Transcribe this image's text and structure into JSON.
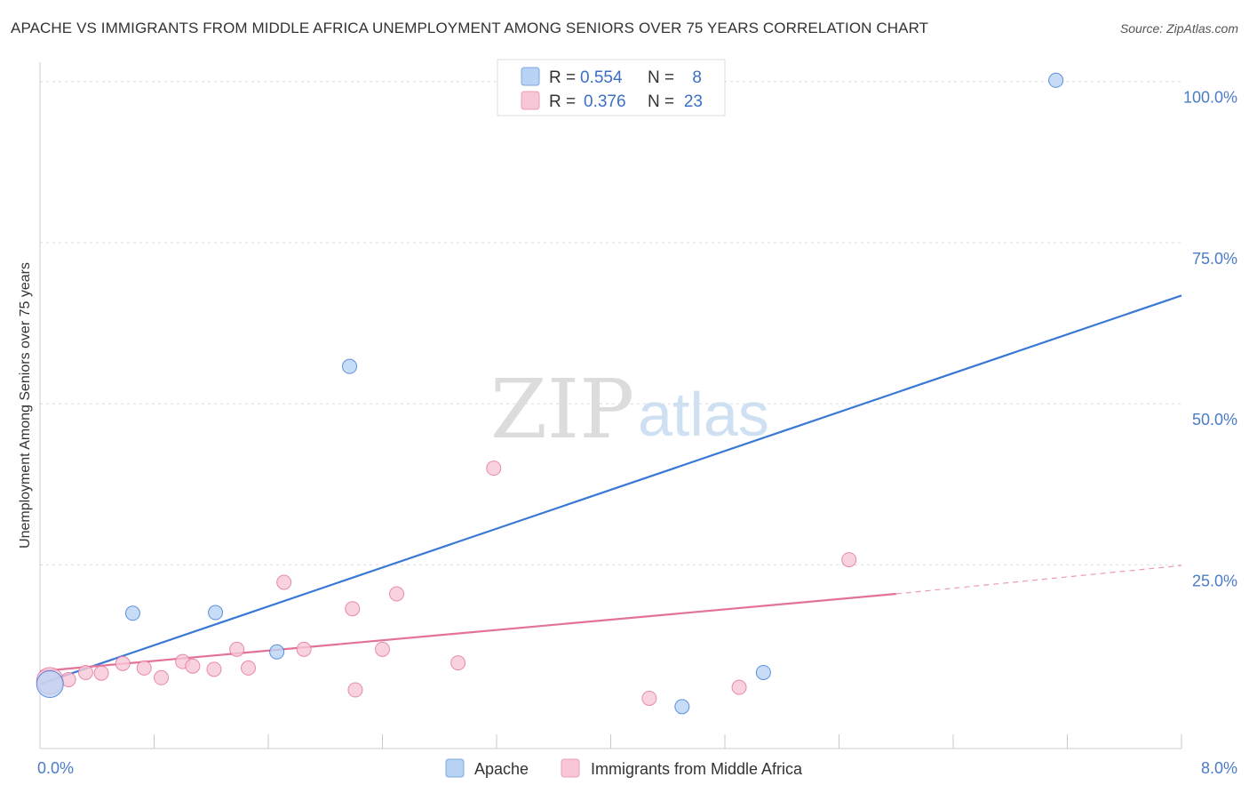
{
  "header": {
    "title": "APACHE VS IMMIGRANTS FROM MIDDLE AFRICA UNEMPLOYMENT AMONG SENIORS OVER 75 YEARS CORRELATION CHART",
    "source": "Source: ZipAtlas.com"
  },
  "watermark": {
    "zip": "ZIP",
    "atlas": "atlas"
  },
  "chart_data": {
    "type": "scatter",
    "title": "APACHE VS IMMIGRANTS FROM MIDDLE AFRICA UNEMPLOYMENT AMONG SENIORS OVER 75 YEARS CORRELATION CHART",
    "xlabel": "",
    "ylabel": "Unemployment Among Seniors over 75 years",
    "xlim": [
      0,
      8
    ],
    "ylim": [
      -3.5,
      103
    ],
    "x_tick_labels": [
      {
        "value": 0,
        "label": "0.0%"
      },
      {
        "value": 8,
        "label": "8.0%"
      }
    ],
    "x_minor_ticks": [
      0.8,
      1.6,
      2.4,
      3.2,
      4.0,
      4.8,
      5.6,
      6.4,
      7.2,
      8.0
    ],
    "y_ticks": [
      {
        "value": 25,
        "label": "25.0%"
      },
      {
        "value": 50,
        "label": "50.0%"
      },
      {
        "value": 75,
        "label": "75.0%"
      },
      {
        "value": 100,
        "label": "100.0%"
      }
    ],
    "grid": true,
    "legend_position": "top-center",
    "series": [
      {
        "name": "Apache",
        "color": "#3a78d6",
        "fill": "#b9d3f4",
        "R": "0.554",
        "N": "8",
        "points": [
          {
            "x": 0.07,
            "y": 6.5,
            "big": true
          },
          {
            "x": 0.65,
            "y": 17.5
          },
          {
            "x": 1.23,
            "y": 17.6
          },
          {
            "x": 1.66,
            "y": 11.5
          },
          {
            "x": 2.17,
            "y": 55.8
          },
          {
            "x": 4.5,
            "y": 3.0
          },
          {
            "x": 5.07,
            "y": 8.3
          },
          {
            "x": 7.12,
            "y": 100.2
          }
        ],
        "trend": {
          "x0": 0.0,
          "y0": 6.5,
          "x1": 8.0,
          "y1": 66.8
        }
      },
      {
        "name": "Immigrants from Middle Africa",
        "color": "#e2729a",
        "fill": "#f8c7d7",
        "R": "0.376",
        "N": "23",
        "points": [
          {
            "x": 0.07,
            "y": 7.0,
            "big": true
          },
          {
            "x": 0.2,
            "y": 7.2
          },
          {
            "x": 0.32,
            "y": 8.3
          },
          {
            "x": 0.43,
            "y": 8.2
          },
          {
            "x": 0.58,
            "y": 9.7
          },
          {
            "x": 0.73,
            "y": 9.0
          },
          {
            "x": 0.85,
            "y": 7.5
          },
          {
            "x": 1.0,
            "y": 10.0
          },
          {
            "x": 1.07,
            "y": 9.3
          },
          {
            "x": 1.22,
            "y": 8.8
          },
          {
            "x": 1.38,
            "y": 11.9
          },
          {
            "x": 1.46,
            "y": 9.0
          },
          {
            "x": 1.71,
            "y": 22.3
          },
          {
            "x": 1.85,
            "y": 11.9
          },
          {
            "x": 2.19,
            "y": 18.2
          },
          {
            "x": 2.21,
            "y": 5.6
          },
          {
            "x": 2.4,
            "y": 11.9
          },
          {
            "x": 2.5,
            "y": 20.5
          },
          {
            "x": 2.93,
            "y": 9.8
          },
          {
            "x": 3.18,
            "y": 40.0
          },
          {
            "x": 4.27,
            "y": 4.3
          },
          {
            "x": 4.9,
            "y": 6.0
          },
          {
            "x": 5.67,
            "y": 25.8
          }
        ],
        "trend": {
          "x0": 0.0,
          "y0": 8.5,
          "x1": 6.0,
          "y1": 20.5
        },
        "trend_dashed": {
          "x0": 6.0,
          "y0": 20.5,
          "x1": 8.0,
          "y1": 24.9
        }
      }
    ]
  },
  "legend": {
    "r_label": "R =",
    "n_label": "N =",
    "apache_r": "0.554",
    "apache_n": "8",
    "africa_r": "0.376",
    "africa_n": "23",
    "apache_color": "#3a78d6",
    "africa_color": "#e2729a"
  },
  "bottom_legend": {
    "apache": "Apache",
    "africa": "Immigrants from Middle Africa"
  }
}
